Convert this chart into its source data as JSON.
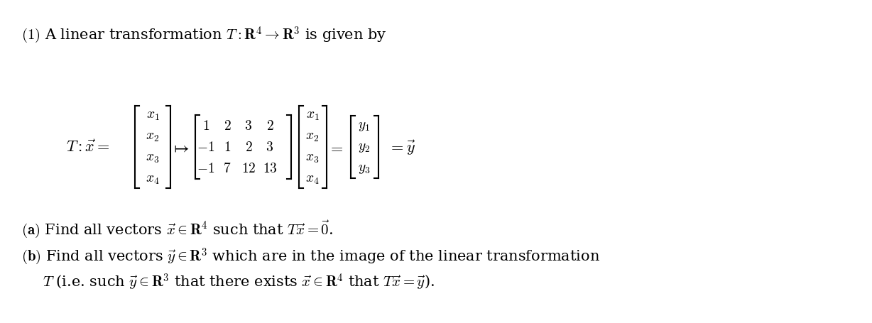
{
  "title_line": "(\\mathbf{1})\\ \\text{A linear transformation}\\ T:\\mathbf{R}^4 \\to \\mathbf{R}^3\\ \\text{is given by}",
  "equation_line": "T : \\vec{x} = \\begin{bmatrix} x_1 \\\\ x_2 \\\\ x_3 \\\\ x_4 \\end{bmatrix} \\mapsto \\begin{bmatrix} 1 & 2 & 3 & 2 \\\\ -1 & 1 & 2 & 3 \\\\ -1 & 7 & 12 & 13 \\end{bmatrix} \\begin{bmatrix} x_1 \\\\ x_2 \\\\ x_3 \\\\ x_4 \\end{bmatrix} = \\begin{bmatrix} y_1 \\\\ y_2 \\\\ y_3 \\end{bmatrix} = \\vec{y}",
  "part_a": "(\\mathbf{a})\\ \\text{Find all vectors}\\ \\vec{x} \\in \\mathbf{R}^4\\ \\text{such that}\\ T\\vec{x} = \\vec{0}.",
  "part_b1": "(\\mathbf{b})\\ \\text{Find all vectors}\\ \\vec{y} \\in \\mathbf{R}^3\\ \\text{which are in the image of the linear transformation}",
  "part_b2": "T\\ \\text{(i.e. such}\\ \\vec{y} \\in \\mathbf{R}^3\\ \\text{that there exists}\\ \\vec{x} \\in \\mathbf{R}^4\\ \\text{that}\\ T\\vec{x} = \\vec{y}\\text{)}.",
  "bg_color": "#ffffff",
  "text_color": "#000000",
  "fontsize_main": 15,
  "fontsize_eq": 14
}
